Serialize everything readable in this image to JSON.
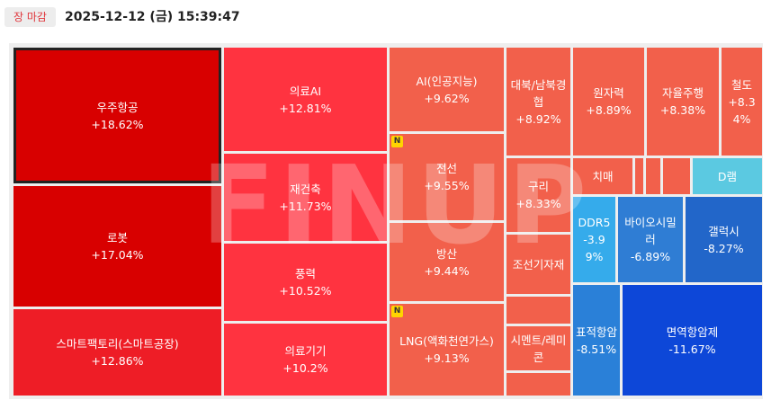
{
  "header": {
    "status": "장 마감",
    "datetime": "2025-12-12 (금) 15:39:47"
  },
  "watermark": "FINUP",
  "tiles": [
    {
      "label": "우주항공",
      "change": "+18.62%"
    },
    {
      "label": "로봇",
      "change": "+17.04%"
    },
    {
      "label": "스마트팩토리(스마트공장)",
      "change": "+12.86%"
    },
    {
      "label": "의료AI",
      "change": "+12.81%"
    },
    {
      "label": "재건축",
      "change": "+11.73%"
    },
    {
      "label": "풍력",
      "change": "+10.52%"
    },
    {
      "label": "의료기기",
      "change": "+10.2%"
    },
    {
      "label": "AI(인공지능)",
      "change": "+9.62%"
    },
    {
      "label": "전선",
      "change": "+9.55%",
      "badge": "N"
    },
    {
      "label": "방산",
      "change": "+9.44%"
    },
    {
      "label": "LNG(액화천연가스)",
      "change": "+9.13%",
      "badge": "N"
    },
    {
      "label": "대북/남북경협",
      "change": "+8.92%"
    },
    {
      "label": "원자력",
      "change": "+8.89%"
    },
    {
      "label": "자율주행",
      "change": "+8.38%"
    },
    {
      "label": "철도",
      "change": "+8.34%"
    },
    {
      "label": "구리",
      "change": "+8.33%"
    },
    {
      "label": "조선기자재"
    },
    {
      "label": "시멘트/레미콘"
    },
    {
      "label": "치매"
    },
    {
      "label": "D램"
    },
    {
      "label": "DDR5",
      "change": "-3.99%"
    },
    {
      "label": "바이오시밀러",
      "change": "-6.89%"
    },
    {
      "label": "갤럭시",
      "change": "-8.27%"
    },
    {
      "label": "표적항암",
      "change": "-8.51%"
    },
    {
      "label": "면역항암제",
      "change": "-11.67%"
    }
  ]
}
